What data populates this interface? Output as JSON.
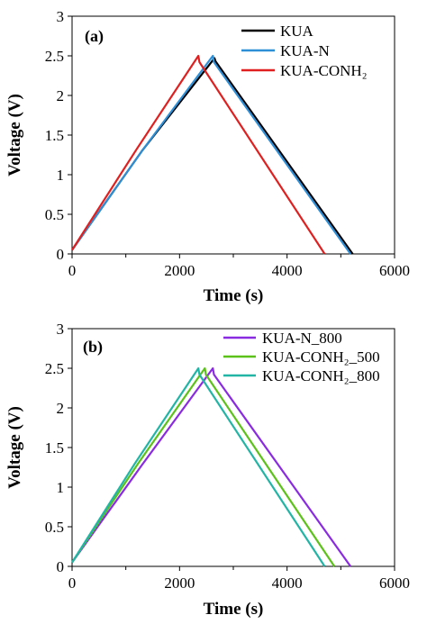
{
  "chart_data": [
    {
      "type": "line",
      "panel_label": "(a)",
      "xlabel": "Time (s)",
      "ylabel": "Voltage (V)",
      "xlim": [
        0,
        6000
      ],
      "ylim": [
        0,
        3
      ],
      "xticks": [
        "0",
        "2000",
        "4000",
        "6000"
      ],
      "yticks": [
        "0",
        "0.5",
        "1",
        "1.5",
        "2",
        "2.5",
        "3"
      ],
      "legend_position": "top-right",
      "series": [
        {
          "name": "KUA",
          "color": "#000000",
          "x": [
            0,
            1300,
            2650,
            2670,
            5220
          ],
          "y": [
            0.05,
            1.3,
            2.47,
            2.43,
            0
          ]
        },
        {
          "name": "KUA-N",
          "color": "#2e8fd6",
          "x": [
            0,
            1300,
            2620,
            2640,
            5180
          ],
          "y": [
            0.05,
            1.3,
            2.5,
            2.42,
            0
          ]
        },
        {
          "name": "KUA-CONH₂",
          "color": "#e02020",
          "x": [
            0,
            1200,
            2350,
            2370,
            4700
          ],
          "y": [
            0.05,
            1.32,
            2.5,
            2.42,
            0
          ]
        }
      ]
    },
    {
      "type": "line",
      "panel_label": "(b)",
      "xlabel": "Time (s)",
      "ylabel": "Voltage (V)",
      "xlim": [
        0,
        6000
      ],
      "ylim": [
        0,
        3
      ],
      "xticks": [
        "0",
        "2000",
        "4000",
        "6000"
      ],
      "yticks": [
        "0",
        "0.5",
        "1",
        "1.5",
        "2",
        "2.5",
        "3"
      ],
      "legend_position": "top-right",
      "series": [
        {
          "name": "KUA-N_800",
          "color": "#8a2be2",
          "x": [
            0,
            1300,
            2620,
            2640,
            5180
          ],
          "y": [
            0.05,
            1.28,
            2.5,
            2.42,
            0
          ]
        },
        {
          "name": "KUA-CONH₂_500",
          "color": "#5cc21a",
          "x": [
            0,
            1230,
            2470,
            2490,
            4880
          ],
          "y": [
            0.05,
            1.3,
            2.5,
            2.42,
            0
          ]
        },
        {
          "name": "KUA-CONH₂_800",
          "color": "#22b5a6",
          "x": [
            0,
            1180,
            2350,
            2370,
            4700
          ],
          "y": [
            0.05,
            1.31,
            2.5,
            2.42,
            0
          ]
        }
      ]
    }
  ]
}
